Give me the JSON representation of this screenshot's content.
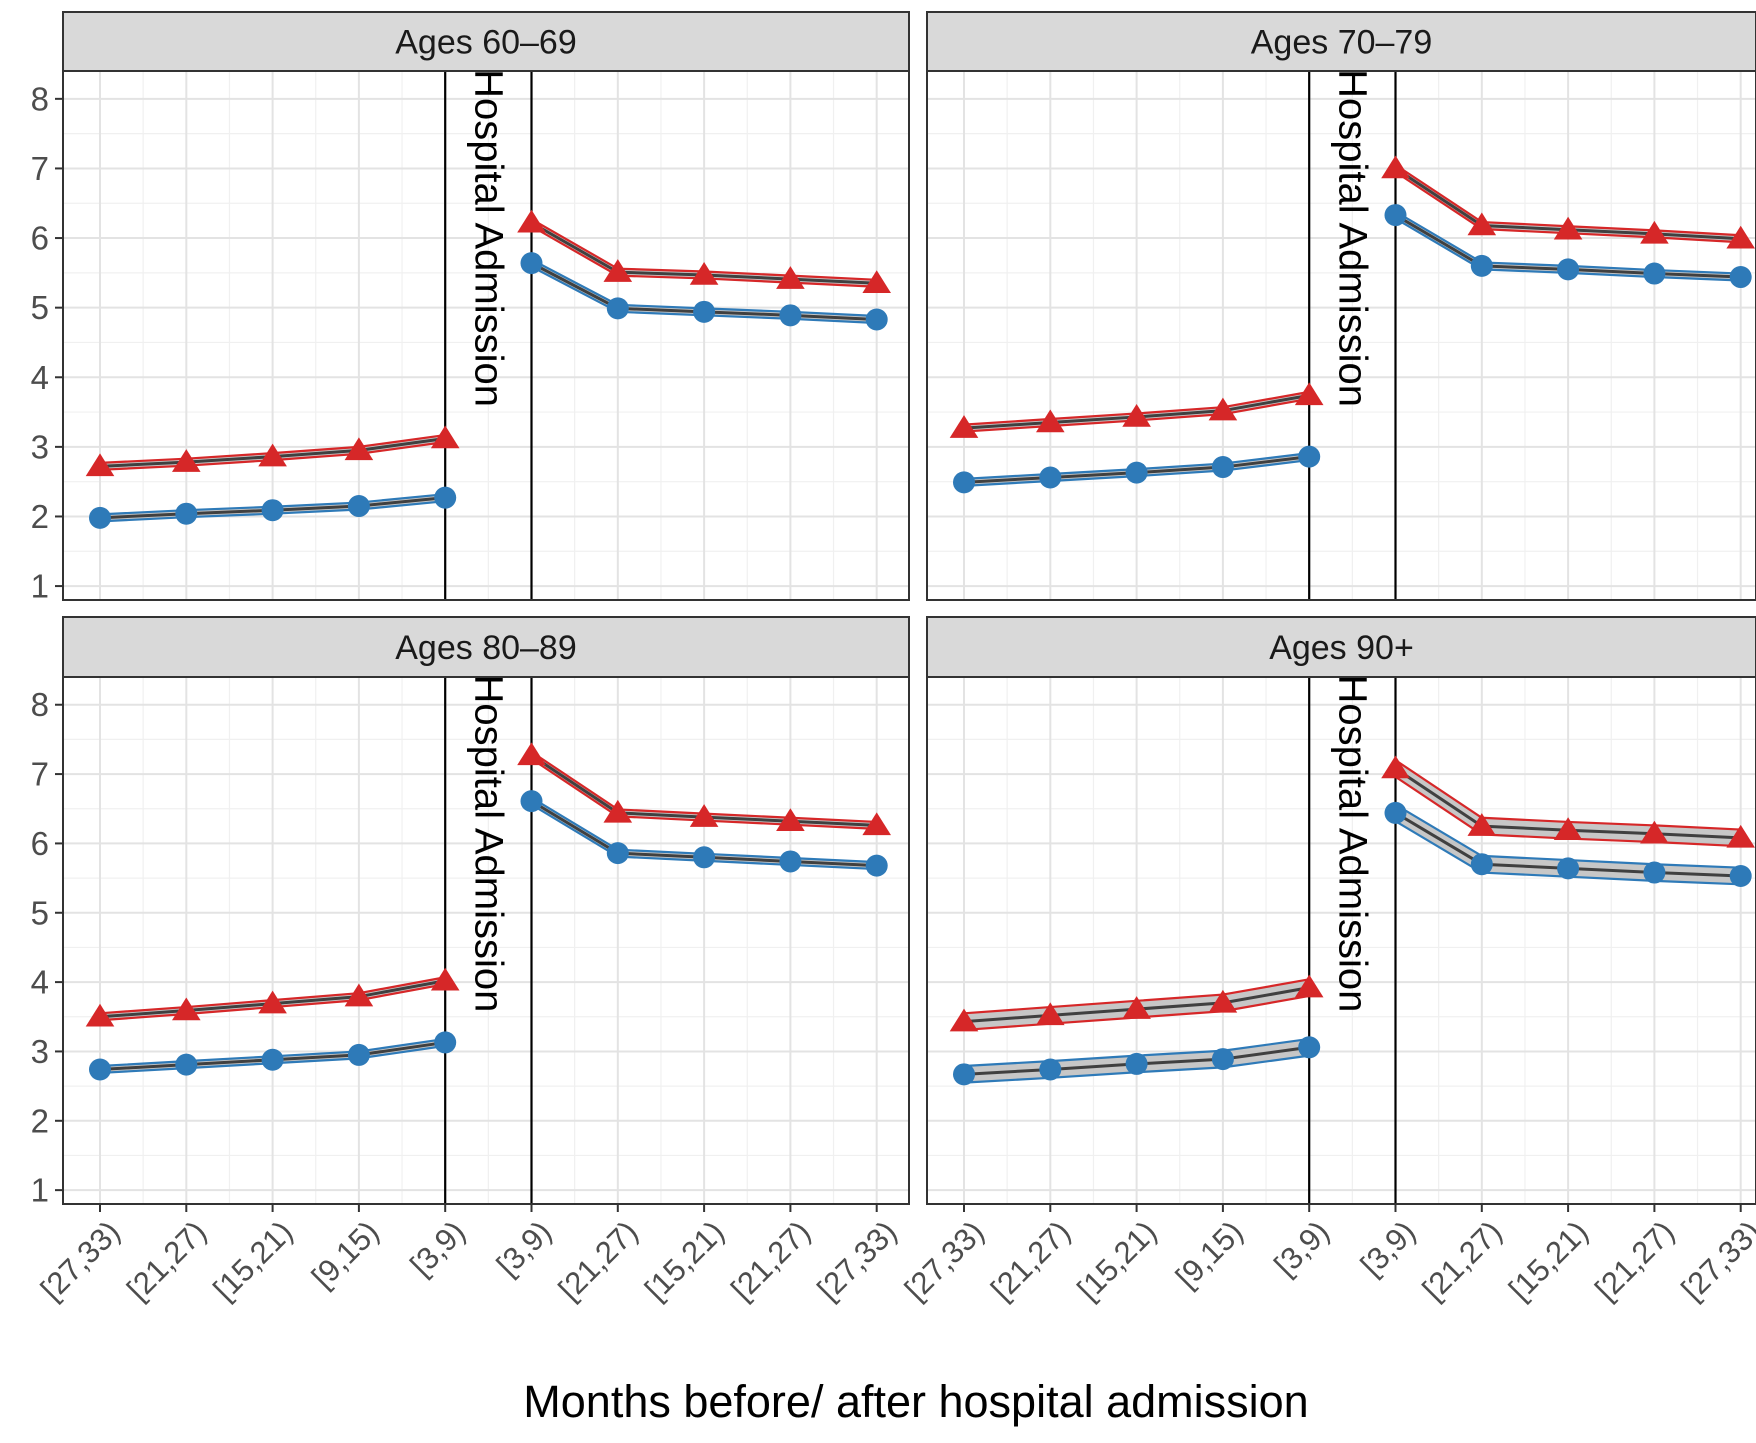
{
  "chart_data": {
    "type": "line",
    "layout": "facet-grid-2x2",
    "xlabel": "Months before/ after hospital admission",
    "ylabel": "",
    "ylim": [
      0.8,
      8.4
    ],
    "yticks": [
      1,
      2,
      3,
      4,
      5,
      6,
      7,
      8
    ],
    "categories": [
      "[27,33)",
      "[21,27)",
      "[15,21)",
      "[9,15)",
      "[3,9)",
      "[3,9)",
      "[21,27)",
      "[15,21)",
      "[21,27)",
      "[27,33)"
    ],
    "vline_label": "Hospital Admission",
    "grid": true,
    "legend": "none",
    "colors": {
      "triangle": "#d62728",
      "circle": "#2e7ab8",
      "ribbon": "#bdbdbd",
      "strip_bg": "#d9d9d9"
    },
    "panels": [
      {
        "title": "Ages 60–69",
        "series": [
          {
            "marker": "triangle",
            "before": [
              2.72,
              2.78,
              2.86,
              2.95,
              3.12
            ],
            "after": [
              6.22,
              5.51,
              5.47,
              5.41,
              5.35
            ],
            "band": 0.05
          },
          {
            "marker": "circle",
            "before": [
              1.98,
              2.04,
              2.09,
              2.15,
              2.27
            ],
            "after": [
              5.64,
              4.99,
              4.94,
              4.89,
              4.83
            ],
            "band": 0.05
          }
        ]
      },
      {
        "title": "Ages 70–79",
        "series": [
          {
            "marker": "triangle",
            "before": [
              3.27,
              3.35,
              3.43,
              3.52,
              3.74
            ],
            "after": [
              7.0,
              6.18,
              6.12,
              6.06,
              5.99
            ],
            "band": 0.05
          },
          {
            "marker": "circle",
            "before": [
              2.49,
              2.56,
              2.63,
              2.71,
              2.86
            ],
            "after": [
              6.33,
              5.6,
              5.55,
              5.49,
              5.44
            ],
            "band": 0.05
          }
        ]
      },
      {
        "title": "Ages 80–89",
        "series": [
          {
            "marker": "triangle",
            "before": [
              3.5,
              3.59,
              3.69,
              3.79,
              4.02
            ],
            "after": [
              7.27,
              6.44,
              6.38,
              6.32,
              6.26
            ],
            "band": 0.05
          },
          {
            "marker": "circle",
            "before": [
              2.74,
              2.81,
              2.88,
              2.95,
              3.13
            ],
            "after": [
              6.61,
              5.86,
              5.8,
              5.74,
              5.68
            ],
            "band": 0.05
          }
        ]
      },
      {
        "title": "Ages 90+",
        "series": [
          {
            "marker": "triangle",
            "before": [
              3.43,
              3.52,
              3.61,
              3.7,
              3.92
            ],
            "after": [
              7.08,
              6.25,
              6.19,
              6.14,
              6.08
            ],
            "band": 0.12
          },
          {
            "marker": "circle",
            "before": [
              2.67,
              2.74,
              2.82,
              2.89,
              3.06
            ],
            "after": [
              6.44,
              5.7,
              5.64,
              5.58,
              5.53
            ],
            "band": 0.12
          }
        ]
      }
    ]
  }
}
